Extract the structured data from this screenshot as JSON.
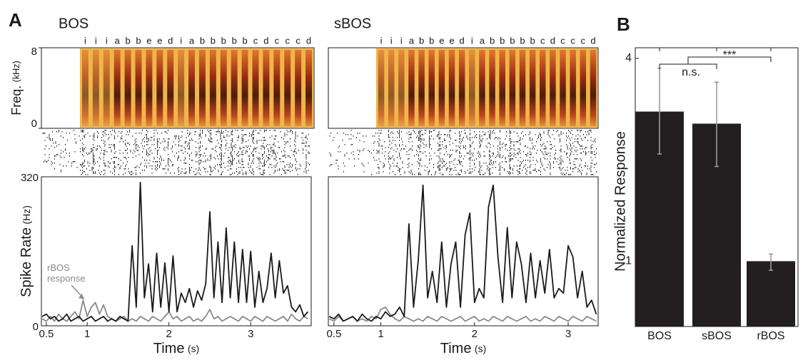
{
  "figure": {
    "panel_labels": [
      "A",
      "B"
    ]
  },
  "chart_data": [
    {
      "type": "line",
      "title": "BOS",
      "syllables": [
        "i",
        "i",
        "i",
        "a",
        "b",
        "b",
        "e",
        "e",
        "d",
        "i",
        "a",
        "b",
        "b",
        "b",
        "b",
        "b",
        "c",
        "d",
        "c",
        "c",
        "c",
        "d"
      ],
      "spectrogram": {
        "y_label": "Freq.",
        "y_unit": "(kHz)",
        "ylim": [
          0,
          8
        ],
        "yticks": [
          0,
          8
        ]
      },
      "x_label": "Time",
      "x_unit": "(s)",
      "y_label": "Spike Rate",
      "y_unit": "(Hz)",
      "annotation": "rBOS response",
      "xlim": [
        0.44,
        3.74
      ],
      "xticks": [
        0.5,
        1,
        2,
        3
      ],
      "ylim": [
        0,
        320
      ],
      "yticks": [
        0,
        320
      ],
      "x": [
        0.45,
        0.5,
        0.55,
        0.6,
        0.65,
        0.7,
        0.75,
        0.8,
        0.85,
        0.9,
        0.95,
        1.0,
        1.05,
        1.1,
        1.15,
        1.2,
        1.25,
        1.3,
        1.35,
        1.4,
        1.45,
        1.5,
        1.55,
        1.6,
        1.65,
        1.7,
        1.75,
        1.8,
        1.85,
        1.9,
        1.95,
        2.0,
        2.05,
        2.1,
        2.15,
        2.2,
        2.25,
        2.3,
        2.35,
        2.4,
        2.45,
        2.5,
        2.55,
        2.6,
        2.65,
        2.7,
        2.75,
        2.8,
        2.85,
        2.9,
        2.95,
        3.0,
        3.05,
        3.1,
        3.15,
        3.2,
        3.25,
        3.3,
        3.35,
        3.4,
        3.45,
        3.5,
        3.55,
        3.6,
        3.65,
        3.7
      ],
      "series": [
        {
          "color": "#1a1a1a",
          "values": [
            20,
            25,
            15,
            20,
            10,
            15,
            25,
            10,
            15,
            20,
            10,
            15,
            20,
            10,
            15,
            20,
            10,
            15,
            10,
            20,
            15,
            10,
            172,
            40,
            308,
            60,
            133,
            30,
            156,
            40,
            135,
            30,
            150,
            30,
            70,
            50,
            80,
            40,
            75,
            55,
            90,
            245,
            60,
            180,
            50,
            210,
            60,
            180,
            50,
            164,
            50,
            160,
            40,
            117,
            50,
            80,
            156,
            60,
            140,
            70,
            86,
            40,
            30,
            45,
            20,
            30
          ]
        },
        {
          "color": "#8a8a8a",
          "values": [
            15,
            10,
            20,
            10,
            25,
            15,
            10,
            20,
            30,
            15,
            55,
            20,
            40,
            50,
            25,
            45,
            20,
            15,
            10,
            15,
            20,
            10,
            15,
            10,
            20,
            15,
            10,
            20,
            15,
            10,
            20,
            30,
            15,
            20,
            10,
            15,
            20,
            10,
            15,
            10,
            20,
            35,
            15,
            20,
            10,
            15,
            20,
            15,
            10,
            20,
            15,
            10,
            20,
            15,
            10,
            20,
            15,
            10,
            15,
            20,
            10,
            25,
            15,
            10,
            20,
            15
          ]
        }
      ]
    },
    {
      "type": "line",
      "title": "sBOS",
      "syllables": [
        "i",
        "i",
        "i",
        "a",
        "b",
        "b",
        "e",
        "e",
        "d",
        "i",
        "a",
        "b",
        "b",
        "b",
        "b",
        "b",
        "c",
        "d",
        "c",
        "c",
        "c",
        "d"
      ],
      "x_label": "Time",
      "x_unit": "(s)",
      "xlim": [
        0.44,
        3.32
      ],
      "xticks": [
        0.5,
        1,
        2,
        3
      ],
      "ylim": [
        0,
        320
      ],
      "x": [
        0.45,
        0.5,
        0.55,
        0.6,
        0.65,
        0.7,
        0.75,
        0.8,
        0.85,
        0.9,
        0.95,
        1.0,
        1.05,
        1.1,
        1.15,
        1.2,
        1.25,
        1.3,
        1.35,
        1.4,
        1.45,
        1.5,
        1.55,
        1.6,
        1.65,
        1.7,
        1.75,
        1.8,
        1.85,
        1.9,
        1.95,
        2.0,
        2.05,
        2.1,
        2.15,
        2.2,
        2.25,
        2.3,
        2.35,
        2.4,
        2.45,
        2.5,
        2.55,
        2.6,
        2.65,
        2.7,
        2.75,
        2.8,
        2.85,
        2.9,
        2.95,
        3.0,
        3.05,
        3.1,
        3.15,
        3.2,
        3.25,
        3.3
      ],
      "series": [
        {
          "color": "#1a1a1a",
          "values": [
            20,
            15,
            25,
            10,
            15,
            20,
            10,
            25,
            15,
            10,
            20,
            15,
            30,
            20,
            25,
            40,
            20,
            219,
            40,
            141,
            302,
            60,
            117,
            50,
            180,
            40,
            133,
            180,
            40,
            195,
            242,
            50,
            80,
            60,
            255,
            302,
            148,
            50,
            211,
            60,
            180,
            133,
            50,
            156,
            60,
            140,
            70,
            164,
            60,
            80,
            70,
            172,
            148,
            60,
            117,
            40,
            55,
            25
          ]
        },
        {
          "color": "#8a8a8a",
          "values": [
            15,
            10,
            20,
            10,
            15,
            20,
            10,
            15,
            10,
            20,
            15,
            35,
            40,
            25,
            15,
            10,
            20,
            15,
            10,
            15,
            10,
            20,
            15,
            10,
            20,
            15,
            10,
            15,
            20,
            10,
            15,
            20,
            10,
            15,
            10,
            20,
            15,
            10,
            20,
            15,
            10,
            15,
            20,
            10,
            15,
            10,
            20,
            15,
            10,
            20,
            15,
            10,
            20,
            15,
            10,
            20,
            15,
            10
          ]
        }
      ]
    },
    {
      "type": "bar",
      "y_label": "Normalized Response",
      "log_y": true,
      "categories": [
        "BOS",
        "sBOS",
        "rBOS"
      ],
      "values": [
        2.78,
        2.56,
        1.0
      ],
      "lower": [
        2.08,
        1.91,
        0.94
      ],
      "upper": [
        3.74,
        3.4,
        1.05
      ],
      "color": "#231f20",
      "error_color": "#9a9a9a",
      "ylim": [
        0.64,
        4.3
      ],
      "yticks": [
        1,
        4
      ],
      "annotations": [
        "n.s.",
        "***"
      ]
    }
  ]
}
